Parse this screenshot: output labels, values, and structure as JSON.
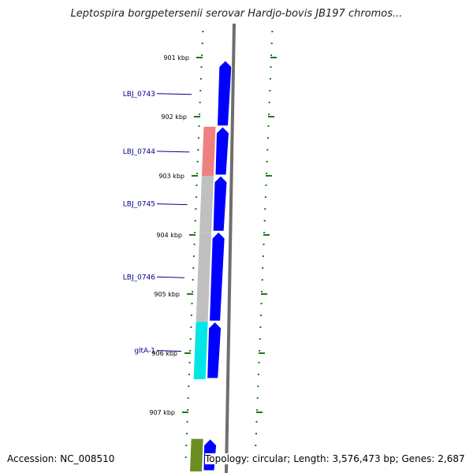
{
  "title": "Leptospira borgpetersenii serovar Hardjo-bovis JB197 chromos...",
  "accession_text": "Accession: NC_008510",
  "summary_text": "Topology: circular; Length: 3,576,473 bp; Genes: 2,687",
  "colors": {
    "backbone": "#808080",
    "tick": "#1a7a1a",
    "cds": "#0000ff",
    "label": "#00008b",
    "cog_salmon": "#f08080",
    "cog_grey": "#c0c0c0",
    "cog_cyan": "#00e5e5",
    "cog_olive": "#6b8e23"
  },
  "axis": {
    "unit": "kbp",
    "labels": [
      "901 kbp",
      "902 kbp",
      "903 kbp",
      "904 kbp",
      "905 kbp",
      "906 kbp",
      "907 kbp"
    ],
    "positions_kbp": [
      901,
      902,
      903,
      904,
      905,
      906,
      907
    ]
  },
  "genes": [
    {
      "name": "LBJ_0743",
      "start_kbp": 901.05,
      "end_kbp": 902.17,
      "strand": "+",
      "cog": null
    },
    {
      "name": "LBJ_0744",
      "start_kbp": 902.17,
      "end_kbp": 903.0,
      "strand": "+",
      "cog": "salmon"
    },
    {
      "name": "LBJ_0745",
      "start_kbp": 903.0,
      "end_kbp": 903.95,
      "strand": "+",
      "cog": "grey"
    },
    {
      "name": "LBJ_0746",
      "start_kbp": 903.95,
      "end_kbp": 905.47,
      "strand": "+",
      "cog": "grey"
    },
    {
      "name": "gltA-1",
      "start_kbp": 905.47,
      "end_kbp": 906.44,
      "strand": "+",
      "cog": "cyan"
    },
    {
      "name": "",
      "start_kbp": 907.45,
      "end_kbp": 908.0,
      "strand": "+",
      "cog": "olive"
    }
  ]
}
